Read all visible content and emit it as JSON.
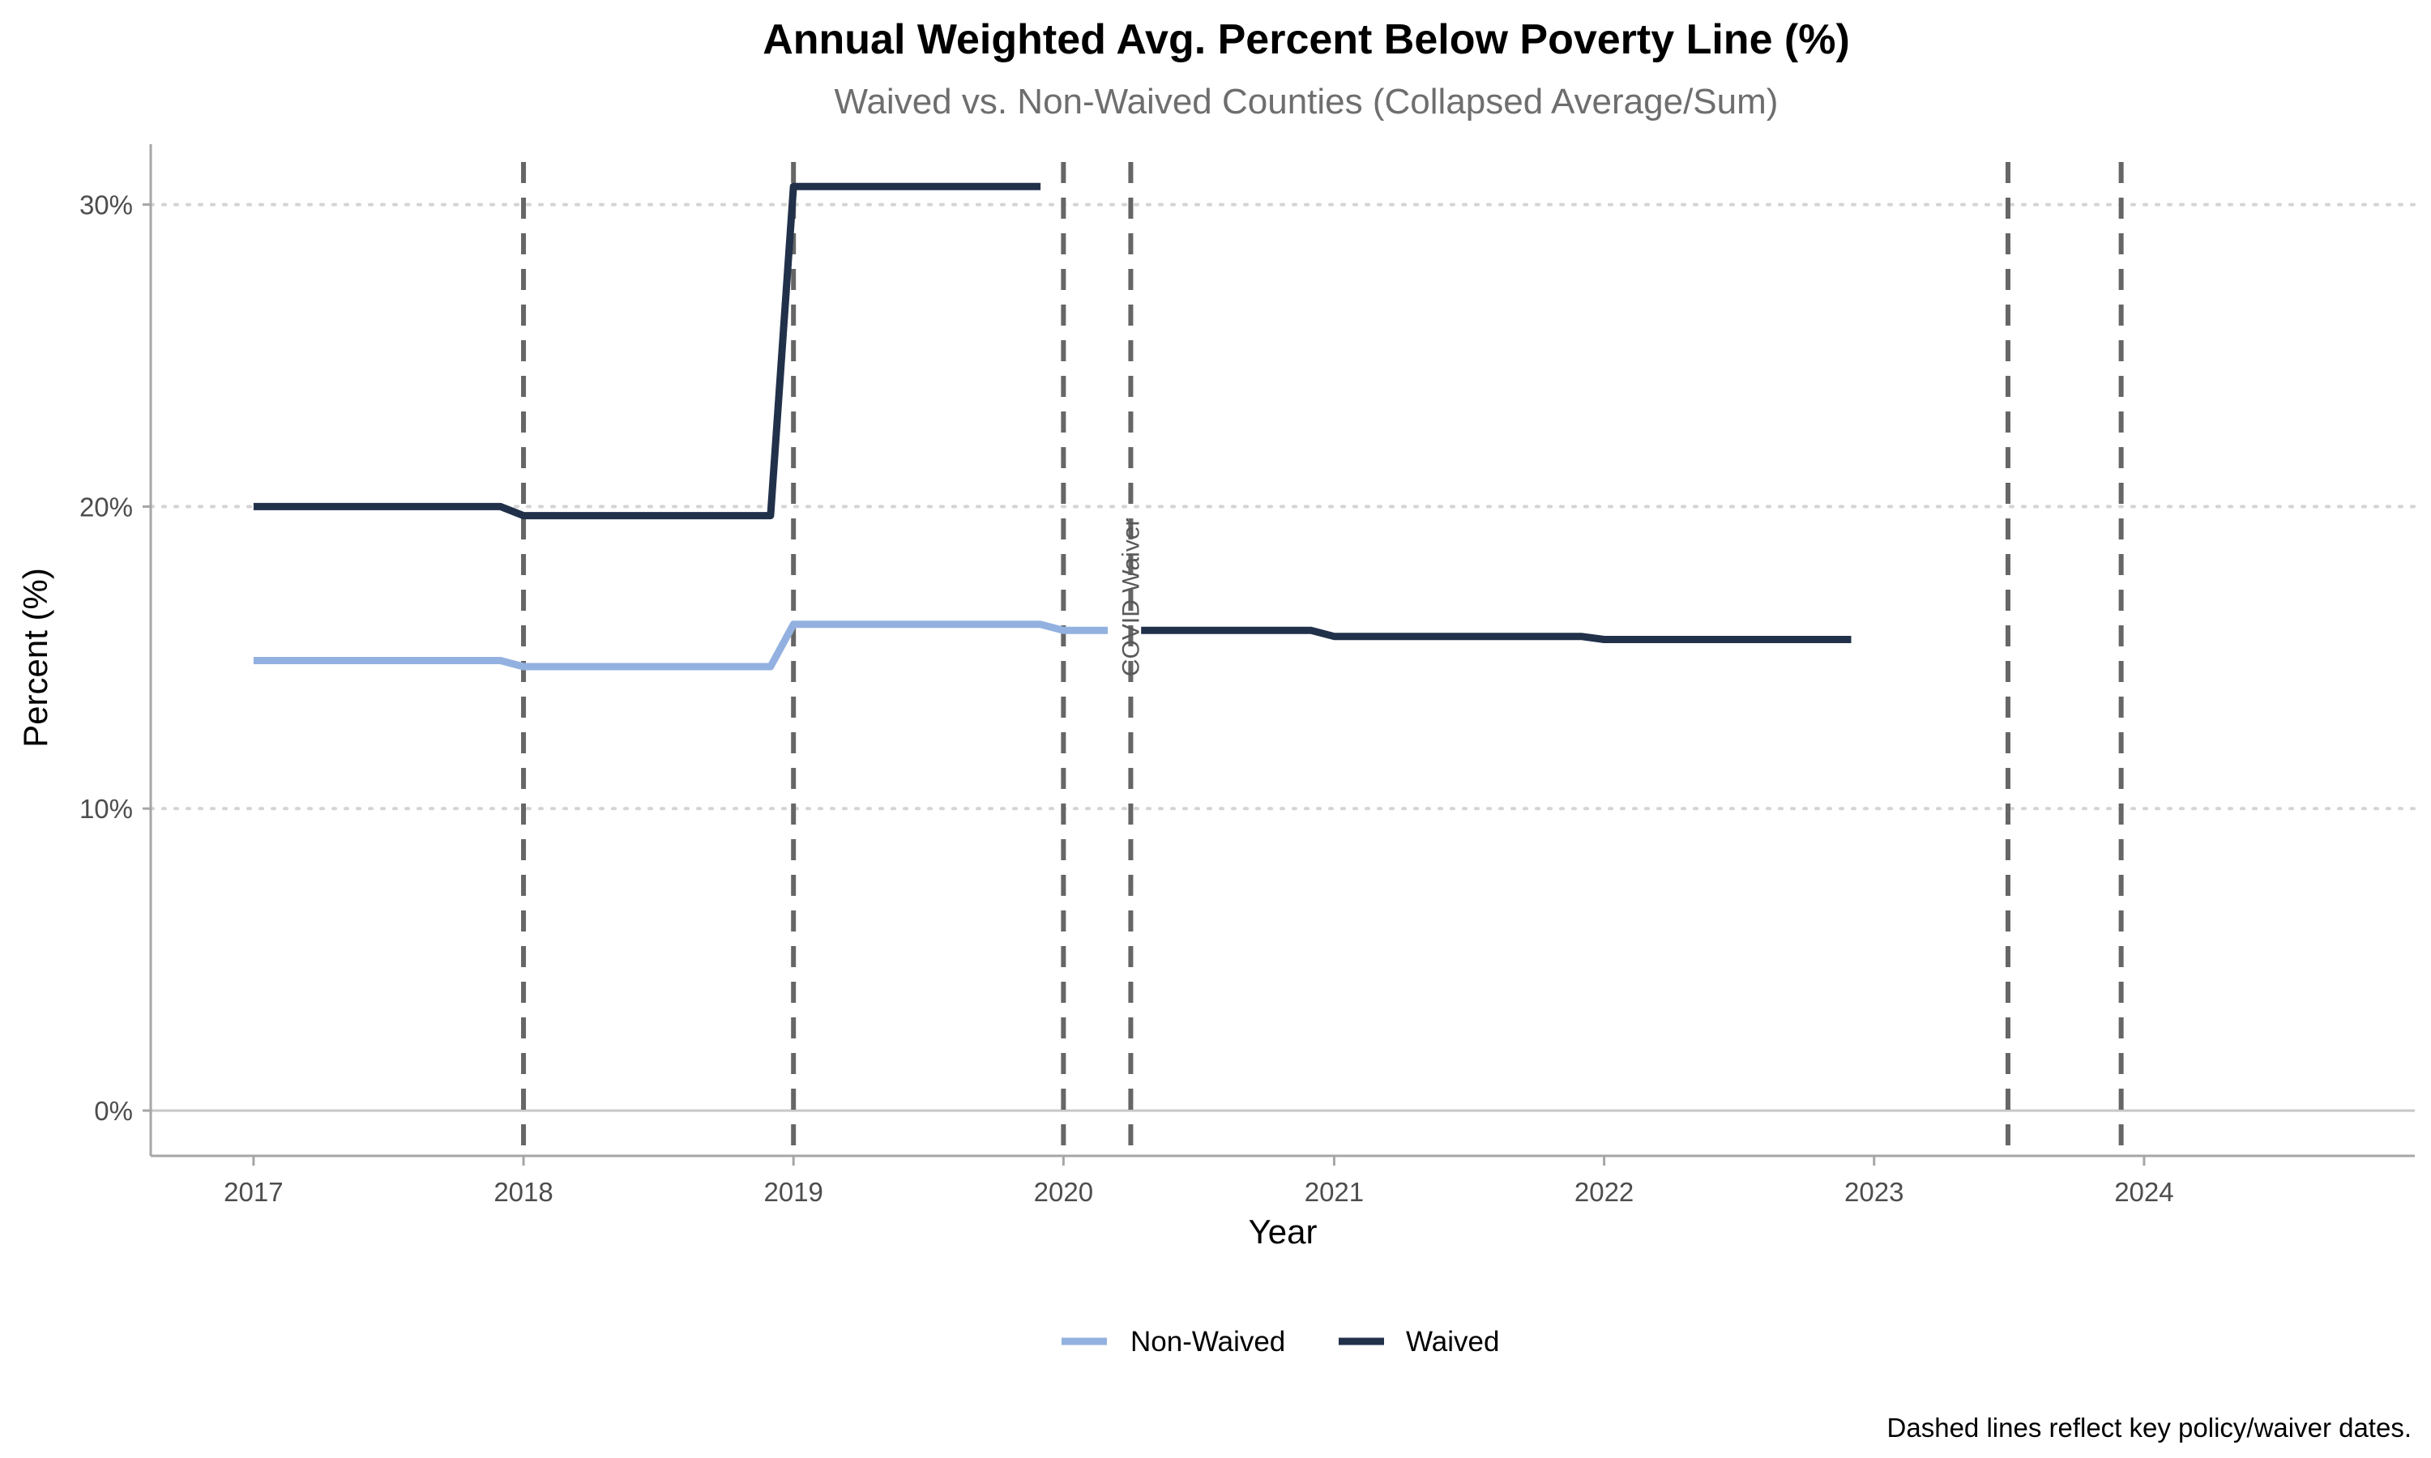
{
  "chart_data": {
    "type": "line",
    "title": "Annual Weighted Avg. Percent Below Poverty Line (%)",
    "subtitle": "Waived vs. Non-Waived Counties (Collapsed Average/Sum)",
    "xlabel": "Year",
    "ylabel": "Percent (%)",
    "caption": "Dashed lines reflect key policy/waiver dates.",
    "xlim": [
      "2016-08-15",
      "2025-01-01"
    ],
    "ylim": [
      -1.5,
      32
    ],
    "x_ticks": [
      "2017",
      "2018",
      "2019",
      "2020",
      "2021",
      "2022",
      "2023",
      "2024"
    ],
    "y_ticks": [
      {
        "value": 0,
        "label": "0%"
      },
      {
        "value": 10,
        "label": "10%"
      },
      {
        "value": 20,
        "label": "20%"
      },
      {
        "value": 30,
        "label": "30%"
      }
    ],
    "grid": "horizontal dotted",
    "legend_position": "bottom",
    "series": [
      {
        "name": "Non-Waived",
        "color": "#93b1e0",
        "segments": [
          [
            {
              "x": "2017-01-01",
              "y": 14.9
            },
            {
              "x": "2017-12-01",
              "y": 14.9
            },
            {
              "x": "2018-01-01",
              "y": 14.7
            },
            {
              "x": "2018-12-01",
              "y": 14.7
            },
            {
              "x": "2019-01-01",
              "y": 16.1
            },
            {
              "x": "2019-12-01",
              "y": 16.1
            },
            {
              "x": "2020-01-01",
              "y": 15.9
            },
            {
              "x": "2020-03-01",
              "y": 15.9
            }
          ]
        ]
      },
      {
        "name": "Waived",
        "color": "#22314a",
        "segments": [
          [
            {
              "x": "2017-01-01",
              "y": 20.0
            },
            {
              "x": "2017-12-01",
              "y": 20.0
            },
            {
              "x": "2018-01-01",
              "y": 19.7
            },
            {
              "x": "2018-12-01",
              "y": 19.7
            },
            {
              "x": "2019-01-01",
              "y": 30.6
            },
            {
              "x": "2019-12-01",
              "y": 30.6
            }
          ],
          [
            {
              "x": "2020-04-15",
              "y": 15.9
            },
            {
              "x": "2020-12-01",
              "y": 15.9
            },
            {
              "x": "2021-01-01",
              "y": 15.7
            },
            {
              "x": "2021-12-01",
              "y": 15.7
            },
            {
              "x": "2022-01-01",
              "y": 15.6
            },
            {
              "x": "2022-12-01",
              "y": 15.6
            }
          ]
        ]
      }
    ],
    "vlines": [
      "2018-01-01",
      "2019-01-01",
      "2020-01-01",
      "2020-04-01",
      "2023-07-01",
      "2023-12-01"
    ],
    "annotations": [
      {
        "text": "COVID Waiver",
        "x": "2020-04-01",
        "y": 17.0
      }
    ]
  }
}
